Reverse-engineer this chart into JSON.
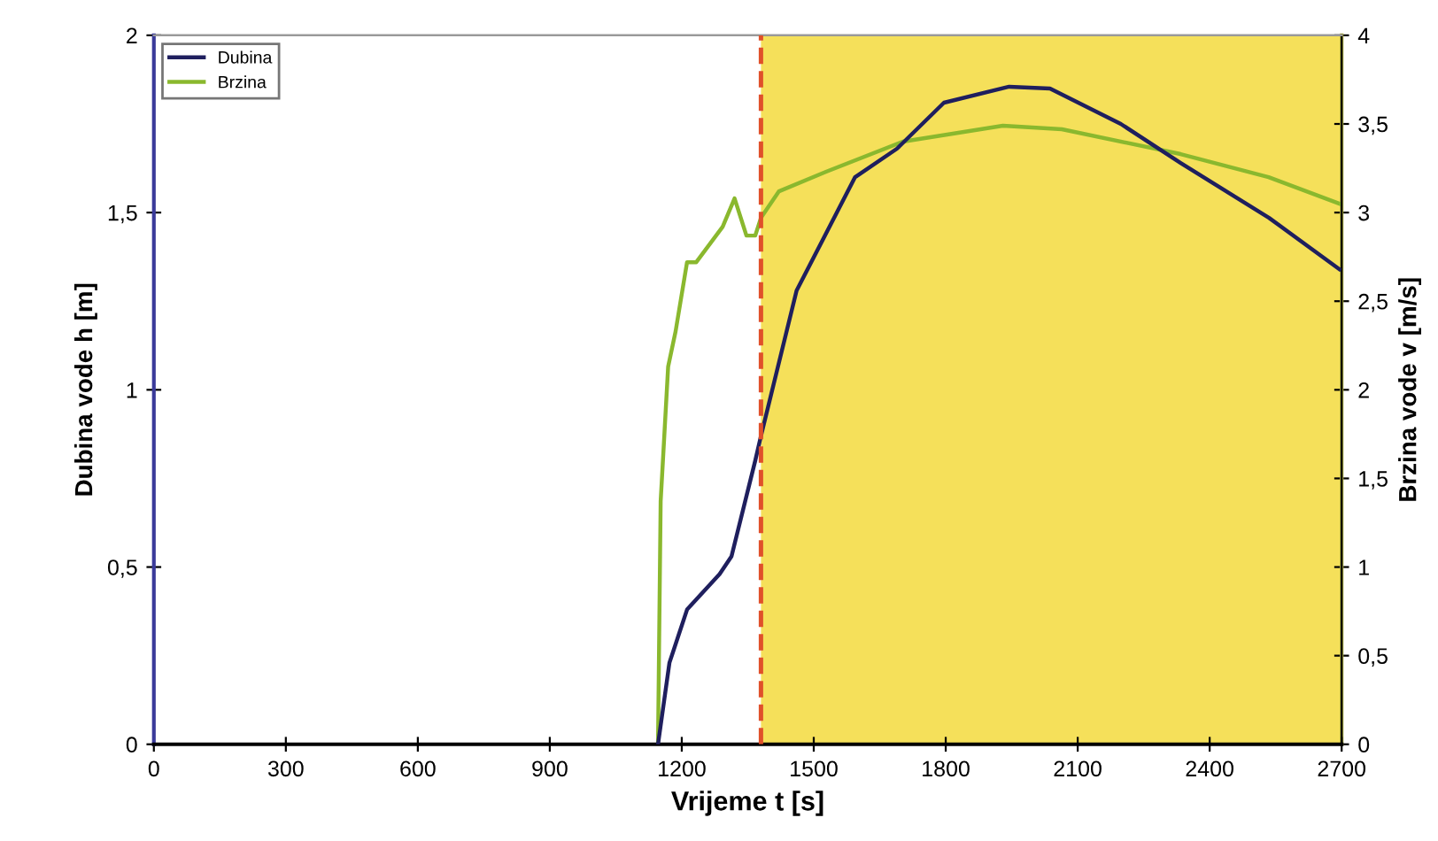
{
  "chart_data": {
    "type": "line",
    "xlabel": "Vrijeme t [s]",
    "ylabel": "Dubina vode h [m]",
    "y2label": "Brzina vode v [m/s]",
    "xlim": [
      0,
      2700
    ],
    "xticks": [
      0,
      300,
      600,
      900,
      1200,
      1500,
      1800,
      2100,
      2400,
      2700
    ],
    "ylim": [
      0,
      2
    ],
    "yticks": [
      0,
      {
        "value": 0.5,
        "label": "0,5"
      },
      1,
      {
        "value": 1.5,
        "label": "1,5"
      },
      2
    ],
    "y2lim": [
      0,
      4
    ],
    "y2ticks": [
      0,
      {
        "value": 0.5,
        "label": "0,5"
      },
      1,
      {
        "value": 1.5,
        "label": "1,5"
      },
      2,
      {
        "value": 2.5,
        "label": "2,5"
      },
      3,
      {
        "value": 3.5,
        "label": "3,5"
      },
      4
    ],
    "series": [
      {
        "name": "Dubina",
        "color": "#1f1f5e",
        "x": [
          1146,
          1172,
          1212,
          1286,
          1313,
          1367,
          1380,
          1461,
          1594,
          1689,
          1796,
          1944,
          2037,
          2198,
          2334,
          2535,
          2695
        ],
        "values": [
          0,
          0.23,
          0.38,
          0.48,
          0.53,
          0.8,
          0.87,
          1.28,
          1.6,
          1.68,
          1.81,
          1.855,
          1.85,
          1.75,
          1.64,
          1.485,
          1.34
        ]
      },
      {
        "name": "Brzina",
        "color": "#8ab82e",
        "axis": "y2",
        "x": [
          1146,
          1152,
          1169,
          1186,
          1212,
          1233,
          1293,
          1320,
          1347,
          1367,
          1380,
          1421,
          1528,
          1702,
          1930,
          2064,
          2334,
          2534,
          2695
        ],
        "values": [
          0,
          1.37,
          2.13,
          2.33,
          2.72,
          2.72,
          2.92,
          3.08,
          2.87,
          2.87,
          2.97,
          3.12,
          3.23,
          3.4,
          3.49,
          3.47,
          3.33,
          3.2,
          3.05
        ]
      }
    ],
    "ref_lines": [
      {
        "axis": "x",
        "value": 1380,
        "color": "#e0502a",
        "line_style": "dashed"
      }
    ],
    "bands": [
      {
        "axis": "x",
        "from": 1380,
        "to": 2700,
        "color": "#f5e05a"
      }
    ],
    "legend": "top left",
    "grid": false,
    "marker": "none",
    "line_style": "solid"
  }
}
